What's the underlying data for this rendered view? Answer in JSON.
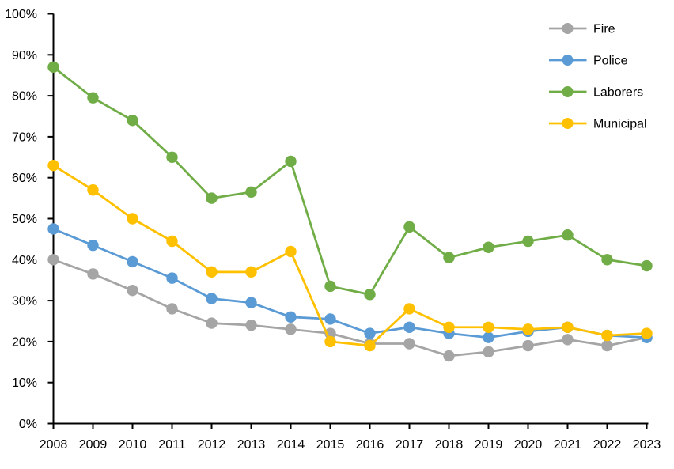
{
  "chart_data": {
    "type": "line",
    "title": "",
    "xlabel": "",
    "ylabel": "",
    "categories": [
      2008,
      2009,
      2010,
      2011,
      2012,
      2013,
      2014,
      2015,
      2016,
      2017,
      2018,
      2019,
      2020,
      2021,
      2022,
      2023
    ],
    "series": [
      {
        "name": "Fire",
        "color": "#A5A5A5",
        "values": [
          40.0,
          36.5,
          32.5,
          28.0,
          24.5,
          24.0,
          23.0,
          22.0,
          19.5,
          19.5,
          16.5,
          17.5,
          19.0,
          20.5,
          19.0,
          21.0
        ]
      },
      {
        "name": "Police",
        "color": "#5B9BD5",
        "values": [
          47.5,
          43.5,
          39.5,
          35.5,
          30.5,
          29.5,
          26.0,
          25.5,
          22.0,
          23.5,
          22.0,
          21.0,
          22.5,
          23.5,
          21.5,
          21.0
        ]
      },
      {
        "name": "Laborers",
        "color": "#70AD47",
        "values": [
          87.0,
          79.5,
          74.0,
          65.0,
          55.0,
          56.5,
          64.0,
          33.5,
          31.5,
          48.0,
          40.5,
          43.0,
          44.5,
          46.0,
          40.0,
          38.5
        ]
      },
      {
        "name": "Municipal",
        "color": "#FFC000",
        "values": [
          63.0,
          57.0,
          50.0,
          44.5,
          37.0,
          37.0,
          42.0,
          20.0,
          19.0,
          28.0,
          23.5,
          23.5,
          23.0,
          23.5,
          21.5,
          22.0
        ]
      }
    ],
    "ylim": [
      0,
      100
    ],
    "ytick_step": 10,
    "ytick_labels": [
      "0%",
      "10%",
      "20%",
      "30%",
      "40%",
      "50%",
      "60%",
      "70%",
      "80%",
      "90%",
      "100%"
    ],
    "legend": {
      "position": "top-right",
      "entries": [
        "Fire",
        "Police",
        "Laborers",
        "Municipal"
      ]
    },
    "grid": false,
    "marker": "circle",
    "axis_color": "#000000",
    "text_color": "#000000",
    "background": "#FFFFFF"
  }
}
